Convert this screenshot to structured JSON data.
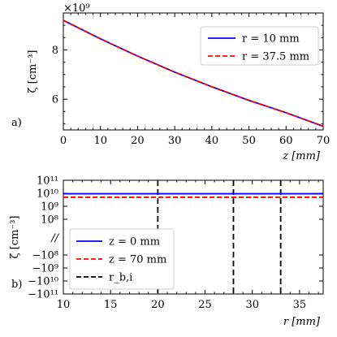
{
  "chart_data": [
    {
      "type": "line",
      "panel_label": "a)",
      "xlabel": "z [mm]",
      "ylabel": "ζ [cm⁻³]",
      "offset_text": "×10⁹",
      "xlim": [
        0,
        70
      ],
      "ylim": [
        4750000000.0,
        9500000000.0
      ],
      "xticks": [
        0,
        10,
        20,
        30,
        40,
        50,
        60,
        70
      ],
      "yticks": [
        6000000000.0,
        8000000000.0
      ],
      "ytick_labels": [
        "6",
        "8"
      ],
      "legend_position": "top-right",
      "series": [
        {
          "name": "r = 10 mm",
          "color": "#0000ff",
          "dash": "solid",
          "x": [
            0,
            10,
            20,
            30,
            40,
            50,
            60,
            70
          ],
          "y": [
            9200000000.0,
            8450000000.0,
            7750000000.0,
            7100000000.0,
            6500000000.0,
            5950000000.0,
            5450000000.0,
            4900000000.0
          ]
        },
        {
          "name": "r = 37.5 mm",
          "color": "#ff0000",
          "dash": "dashed",
          "x": [
            0,
            10,
            20,
            30,
            40,
            50,
            60,
            70
          ],
          "y": [
            9200000000.0,
            8450000000.0,
            7750000000.0,
            7100000000.0,
            6500000000.0,
            5950000000.0,
            5450000000.0,
            4900000000.0
          ]
        }
      ]
    },
    {
      "type": "line",
      "panel_label": "b)",
      "xlabel": "r [mm]",
      "ylabel": "ζ [cm⁻³]",
      "xlim": [
        10,
        37.5
      ],
      "xticks": [
        10,
        15,
        20,
        25,
        30,
        35
      ],
      "yscale": "symlog with axis break",
      "yticks": [
        100000000000.0,
        10000000000.0,
        1000000000.0,
        100000000.0,
        -100000000.0,
        -1000000000.0,
        -10000000000.0,
        -100000000000.0
      ],
      "ytick_labels": [
        "10¹¹",
        "10¹⁰",
        "10⁹",
        "10⁸",
        "−10⁸",
        "−10⁹",
        "−10¹⁰",
        "−10¹¹"
      ],
      "axis_break_symbol": "//",
      "legend_position": "bottom-left",
      "series": [
        {
          "name": "z = 0 mm",
          "color": "#0000ff",
          "dash": "solid",
          "x": [
            10,
            37.5
          ],
          "y": [
            9200000000.0,
            9200000000.0
          ]
        },
        {
          "name": "z = 70 mm",
          "color": "#ff0000",
          "dash": "dashed",
          "x": [
            10,
            37.5
          ],
          "y": [
            4900000000.0,
            4900000000.0
          ]
        },
        {
          "name": "r_b,i",
          "color": "#000000",
          "dash": "dashed",
          "vlines": [
            20,
            28,
            33
          ]
        }
      ]
    }
  ]
}
